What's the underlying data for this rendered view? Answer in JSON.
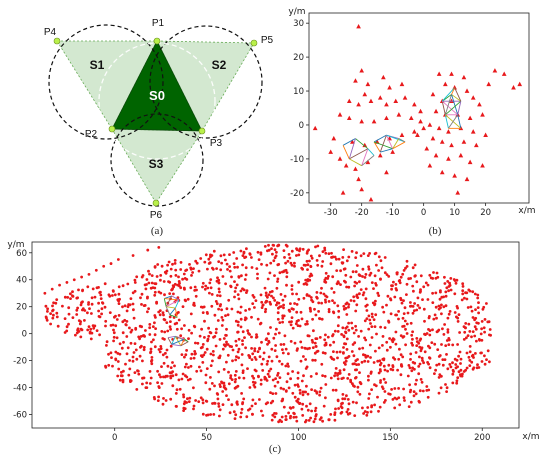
{
  "panel_a": {
    "regions": {
      "s0": "S0",
      "s1": "S1",
      "s2": "S2",
      "s3": "S3"
    },
    "points": {
      "p1": "P1",
      "p2": "P2",
      "p3": "P3",
      "p4": "P4",
      "p5": "P5",
      "p6": "P6"
    },
    "caption": "(a)",
    "colors": {
      "center": "#006400",
      "outer": "#d3e8d0",
      "point": "#b9f04a"
    }
  },
  "panel_b": {
    "caption": "(b)",
    "xlabel": "x/m",
    "ylabel": "y/m",
    "x_ticks": [
      "-30",
      "-20",
      "-10",
      "0",
      "10",
      "20"
    ],
    "y_ticks": [
      "30",
      "20",
      "10",
      "0",
      "-10",
      "-20"
    ],
    "marker_color": "#e8191c"
  },
  "panel_c": {
    "caption": "(c)",
    "xlabel": "x/m",
    "ylabel": "y/m",
    "x_ticks": [
      "0",
      "50",
      "100",
      "150",
      "200"
    ],
    "y_ticks": [
      "60",
      "40",
      "20",
      "0",
      "-20",
      "-40",
      "-60"
    ],
    "marker_color": "#e8191c"
  },
  "chart_data": [
    {
      "type": "scatter",
      "name": "panel-b",
      "xlabel": "x/m",
      "ylabel": "y/m",
      "xlim": [
        -37,
        34
      ],
      "ylim": [
        -23,
        33
      ],
      "points": [
        [
          -21,
          29
        ],
        [
          -20,
          16
        ],
        [
          -22,
          13
        ],
        [
          -18,
          12
        ],
        [
          -19,
          9
        ],
        [
          -13,
          14
        ],
        [
          -11,
          11
        ],
        [
          -7,
          12
        ],
        [
          -24,
          7
        ],
        [
          -21,
          6
        ],
        [
          -17,
          7
        ],
        [
          -14,
          8
        ],
        [
          -12,
          6
        ],
        [
          -9,
          7
        ],
        [
          -6,
          8
        ],
        [
          -3,
          6
        ],
        [
          -1,
          4
        ],
        [
          -27,
          3
        ],
        [
          -24,
          2
        ],
        [
          -20,
          1
        ],
        [
          -16,
          1
        ],
        [
          -12,
          2
        ],
        [
          -8,
          3
        ],
        [
          -4,
          2
        ],
        [
          -1,
          1
        ],
        [
          -35,
          -1
        ],
        [
          -29,
          -4
        ],
        [
          -23,
          -5
        ],
        [
          -19,
          -6
        ],
        [
          -15,
          -5
        ],
        [
          -11,
          -4
        ],
        [
          -7,
          -3
        ],
        [
          -3,
          -2
        ],
        [
          0,
          -1
        ],
        [
          -30,
          -8
        ],
        [
          -27,
          -10
        ],
        [
          -25,
          -12
        ],
        [
          -22,
          -13
        ],
        [
          -21,
          -16
        ],
        [
          -18,
          -11
        ],
        [
          -14,
          -9
        ],
        [
          -10,
          -8
        ],
        [
          -26,
          -20
        ],
        [
          -20,
          -19
        ],
        [
          -17,
          -22
        ],
        [
          -12,
          -14
        ],
        [
          -2,
          -3
        ],
        [
          5,
          15
        ],
        [
          9,
          15
        ],
        [
          13,
          14
        ],
        [
          7,
          12
        ],
        [
          10,
          11
        ],
        [
          14,
          10
        ],
        [
          3,
          9
        ],
        [
          6,
          7
        ],
        [
          9,
          7
        ],
        [
          16,
          8
        ],
        [
          18,
          6
        ],
        [
          4,
          4
        ],
        [
          7,
          3
        ],
        [
          11,
          3
        ],
        [
          15,
          2
        ],
        [
          19,
          3
        ],
        [
          2,
          0
        ],
        [
          5,
          -1
        ],
        [
          8,
          -2
        ],
        [
          12,
          -1
        ],
        [
          16,
          -2
        ],
        [
          3,
          -4
        ],
        [
          6,
          -5
        ],
        [
          9,
          -6
        ],
        [
          13,
          -5
        ],
        [
          17,
          -6
        ],
        [
          4,
          -9
        ],
        [
          8,
          -10
        ],
        [
          12,
          -9
        ],
        [
          15,
          -11
        ],
        [
          19,
          -12
        ],
        [
          6,
          -14
        ],
        [
          10,
          -15
        ],
        [
          14,
          -16
        ],
        [
          2,
          -12
        ],
        [
          23,
          16
        ],
        [
          26,
          15
        ],
        [
          29,
          11
        ],
        [
          31,
          12
        ],
        [
          21,
          12
        ],
        [
          11,
          -20
        ],
        [
          1,
          -7
        ],
        [
          20,
          -3
        ]
      ]
    },
    {
      "type": "scatter",
      "name": "panel-c",
      "xlabel": "x/m",
      "ylabel": "y/m",
      "xlim": [
        -45,
        220
      ],
      "ylim": [
        -70,
        68
      ],
      "description_of_points": "about 2000 scattered points forming an elongated cloud spanning x -40 to 205, y -65 to 65"
    }
  ]
}
